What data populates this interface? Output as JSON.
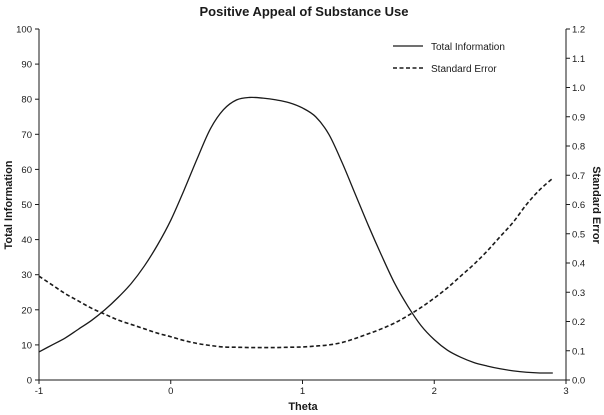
{
  "chart_data": {
    "type": "line",
    "title": "Positive Appeal of Substance Use",
    "xlabel": "Theta",
    "ylabel_left": "Total Information",
    "ylabel_right": "Standard Error",
    "xlim": [
      -1,
      3
    ],
    "ylim_left": [
      0,
      100
    ],
    "ylim_right": [
      0,
      1.2
    ],
    "x_ticks": [
      "-1",
      "0",
      "1",
      "2",
      "3"
    ],
    "y_left_ticks": [
      "0",
      "10",
      "20",
      "30",
      "40",
      "50",
      "60",
      "70",
      "80",
      "90",
      "100"
    ],
    "y_right_ticks": [
      "0.0",
      "0.1",
      "0.2",
      "0.3",
      "0.4",
      "0.5",
      "0.6",
      "0.7",
      "0.8",
      "0.9",
      "1.0",
      "1.1",
      "1.2"
    ],
    "grid": false,
    "legend_position": "top-right",
    "series": [
      {
        "name": "Total Information",
        "axis": "left",
        "style": "solid",
        "color": "#1a1a1a",
        "x": [
          -1,
          -0.9,
          -0.8,
          -0.7,
          -0.6,
          -0.5,
          -0.4,
          -0.3,
          -0.2,
          -0.1,
          0,
          0.1,
          0.2,
          0.3,
          0.4,
          0.5,
          0.6,
          0.7,
          0.8,
          0.9,
          1.0,
          1.1,
          1.2,
          1.3,
          1.4,
          1.5,
          1.6,
          1.7,
          1.8,
          1.9,
          2.0,
          2.1,
          2.2,
          2.3,
          2.4,
          2.5,
          2.6,
          2.7,
          2.8,
          2.9
        ],
        "y": [
          8,
          10,
          12,
          14.5,
          17,
          20,
          23.5,
          27.5,
          32.5,
          38.5,
          45.5,
          54,
          63,
          71.5,
          77,
          79.8,
          80.5,
          80.3,
          79.8,
          79,
          77.5,
          75,
          70,
          62,
          53,
          44,
          35.5,
          27.5,
          21,
          15.5,
          11.5,
          8.5,
          6.5,
          5,
          4,
          3.2,
          2.6,
          2.2,
          2,
          2
        ]
      },
      {
        "name": "Standard Error",
        "axis": "right",
        "style": "dashed",
        "color": "#1a1a1a",
        "x": [
          -1,
          -0.9,
          -0.8,
          -0.7,
          -0.6,
          -0.5,
          -0.4,
          -0.3,
          -0.2,
          -0.1,
          0,
          0.1,
          0.2,
          0.3,
          0.4,
          0.5,
          0.6,
          0.7,
          0.8,
          0.9,
          1.0,
          1.1,
          1.2,
          1.3,
          1.4,
          1.5,
          1.6,
          1.7,
          1.8,
          1.9,
          2.0,
          2.1,
          2.2,
          2.3,
          2.4,
          2.5,
          2.6,
          2.7,
          2.8,
          2.9
        ],
        "y": [
          0.355,
          0.325,
          0.295,
          0.27,
          0.245,
          0.225,
          0.205,
          0.19,
          0.175,
          0.16,
          0.148,
          0.135,
          0.125,
          0.118,
          0.113,
          0.112,
          0.111,
          0.111,
          0.111,
          0.112,
          0.113,
          0.116,
          0.12,
          0.128,
          0.142,
          0.158,
          0.175,
          0.195,
          0.22,
          0.248,
          0.28,
          0.315,
          0.355,
          0.395,
          0.44,
          0.49,
          0.54,
          0.6,
          0.65,
          0.69
        ]
      }
    ]
  }
}
